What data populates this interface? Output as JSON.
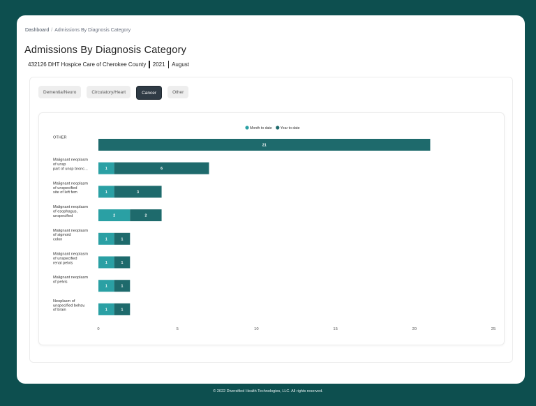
{
  "breadcrumb": {
    "home": "Dashboard",
    "current": "Admissions By Diagnosis Category"
  },
  "header": {
    "title": "Admissions By Diagnosis Category",
    "agency": "432126 DHT Hospice Care of Cherokee County",
    "year": "2021",
    "month": "August"
  },
  "tabs": [
    {
      "label": "Dementia/Neuro",
      "active": false
    },
    {
      "label": "Circulatory/Heart",
      "active": false
    },
    {
      "label": "Cancer",
      "active": true
    },
    {
      "label": "Other",
      "active": false
    }
  ],
  "colors": {
    "month": "#2aa0a4",
    "year": "#1e6a6c",
    "background": "#0d4f4f",
    "active_tab": "#2f3b45"
  },
  "chart_data": {
    "type": "bar",
    "orientation": "horizontal",
    "stacked": true,
    "legend_position": "top",
    "xlim": [
      0,
      25
    ],
    "x_ticks": [
      0,
      5,
      10,
      15,
      20,
      25
    ],
    "categories": [
      [
        "OTHER"
      ],
      [
        "Malignant neoplasm",
        "of unsp",
        "part of unsp bronc..."
      ],
      [
        "Malignant neoplasm",
        "of unspecified",
        "site of left fem"
      ],
      [
        "Malignant neoplasm",
        "of esophagus,",
        "unspecified"
      ],
      [
        "Malignant neoplasm",
        "of sigmoid",
        "colon"
      ],
      [
        "Malignant neoplasm",
        "of unspecified",
        "renal pelvis"
      ],
      [
        "Malignant neoplasm",
        "of pelvis"
      ],
      [
        "Neoplasm of",
        "unspecified behav.",
        "of brain"
      ]
    ],
    "series": [
      {
        "name": "Month to date",
        "values": [
          0,
          1,
          1,
          2,
          1,
          1,
          1,
          1
        ]
      },
      {
        "name": "Year to date",
        "values": [
          21,
          6,
          3,
          2,
          1,
          1,
          1,
          1
        ]
      }
    ]
  },
  "footer": {
    "text": "© 2022 Diversified Health Technologies, LLC. All rights reserved."
  }
}
